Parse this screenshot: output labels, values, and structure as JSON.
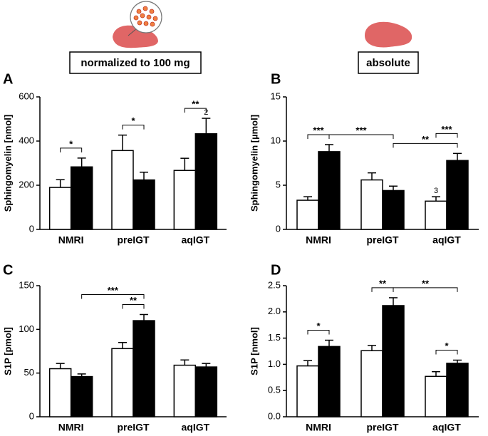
{
  "header": {
    "left_box": "normalized to 100 mg",
    "right_box": "absolute"
  },
  "chart_data": [
    {
      "type": "bar",
      "panel": "A",
      "ylabel": "Sphingomyelin [nmol]",
      "categories": [
        "NMRI",
        "preIGT",
        "aqIGT"
      ],
      "series": [
        {
          "color": "#ffffff",
          "values": [
            190,
            357,
            267
          ],
          "errors": [
            35,
            70,
            55
          ]
        },
        {
          "color": "#000000",
          "values": [
            283,
            224,
            433
          ],
          "errors": [
            40,
            35,
            70
          ]
        }
      ],
      "ylim": [
        0,
        600
      ],
      "yticks": [
        0,
        200,
        400,
        600
      ],
      "brackets": [
        {
          "label": "*",
          "from": {
            "series": 0,
            "category": 0
          },
          "to": {
            "series": 1,
            "category": 0
          }
        },
        {
          "label": "*",
          "from": {
            "series": 0,
            "category": 1
          },
          "to": {
            "series": 1,
            "category": 1
          }
        },
        {
          "label": "**",
          "from": {
            "series": 0,
            "category": 2
          },
          "to": {
            "series": 1,
            "category": 2
          }
        }
      ],
      "notes": [
        {
          "text": "2",
          "series": 1,
          "category": 2
        }
      ]
    },
    {
      "type": "bar",
      "panel": "B",
      "ylabel": "Sphingomyelin [µmol]",
      "categories": [
        "NMRI",
        "preIGT",
        "aqIGT"
      ],
      "series": [
        {
          "color": "#ffffff",
          "values": [
            3.3,
            5.6,
            3.2
          ],
          "errors": [
            0.4,
            0.8,
            0.5
          ]
        },
        {
          "color": "#000000",
          "values": [
            8.8,
            4.4,
            7.8
          ],
          "errors": [
            0.8,
            0.5,
            0.8
          ]
        }
      ],
      "ylim": [
        0,
        15
      ],
      "yticks": [
        0,
        5,
        10,
        15
      ],
      "brackets": [
        {
          "label": "***",
          "from": {
            "series": 0,
            "category": 0
          },
          "to": {
            "series": 1,
            "category": 0
          }
        },
        {
          "label": "***",
          "from": {
            "series": 1,
            "category": 0
          },
          "to": {
            "series": 1,
            "category": 1
          }
        },
        {
          "label": "**",
          "from": {
            "series": 1,
            "category": 1
          },
          "to": {
            "series": 1,
            "category": 2
          }
        },
        {
          "label": "***",
          "from": {
            "series": 0,
            "category": 2
          },
          "to": {
            "series": 1,
            "category": 2
          }
        }
      ],
      "notes": [
        {
          "text": "3",
          "series": 0,
          "category": 2
        }
      ]
    },
    {
      "type": "bar",
      "panel": "C",
      "ylabel": "S1P [pmol]",
      "categories": [
        "NMRI",
        "preIGT",
        "aqIGT"
      ],
      "series": [
        {
          "color": "#ffffff",
          "values": [
            55,
            78,
            59
          ],
          "errors": [
            6,
            7,
            6
          ]
        },
        {
          "color": "#000000",
          "values": [
            46,
            110,
            57
          ],
          "errors": [
            3,
            7,
            4
          ]
        }
      ],
      "ylim": [
        0,
        150
      ],
      "yticks": [
        0,
        50,
        100,
        150
      ],
      "brackets": [
        {
          "label": "**",
          "from": {
            "series": 0,
            "category": 1
          },
          "to": {
            "series": 1,
            "category": 1
          }
        },
        {
          "label": "***",
          "from": {
            "series": 1,
            "category": 0
          },
          "to": {
            "series": 1,
            "category": 1
          }
        }
      ],
      "notes": []
    },
    {
      "type": "bar",
      "panel": "D",
      "ylabel": "S1P [nmol]",
      "categories": [
        "NMRI",
        "preIGT",
        "aqIGT"
      ],
      "series": [
        {
          "color": "#ffffff",
          "values": [
            0.97,
            1.26,
            0.77
          ],
          "errors": [
            0.1,
            0.1,
            0.09
          ]
        },
        {
          "color": "#000000",
          "values": [
            1.34,
            2.12,
            1.02
          ],
          "errors": [
            0.12,
            0.15,
            0.06
          ]
        }
      ],
      "ylim": [
        0,
        2.5
      ],
      "yticks": [
        {
          "value": 0,
          "label": "0.0"
        },
        0.5,
        {
          "value": 1,
          "label": "1.0"
        },
        1.5,
        {
          "value": 2,
          "label": "2.0"
        },
        2.5
      ],
      "brackets": [
        {
          "label": "*",
          "from": {
            "series": 0,
            "category": 0
          },
          "to": {
            "series": 1,
            "category": 0
          }
        },
        {
          "label": "**",
          "from": {
            "series": 0,
            "category": 1
          },
          "to": {
            "series": 1,
            "category": 1
          }
        },
        {
          "label": "**",
          "from": {
            "series": 1,
            "category": 1
          },
          "to": {
            "series": 1,
            "category": 2
          }
        },
        {
          "label": "*",
          "from": {
            "series": 0,
            "category": 2
          },
          "to": {
            "series": 1,
            "category": 2
          }
        }
      ],
      "notes": []
    }
  ]
}
